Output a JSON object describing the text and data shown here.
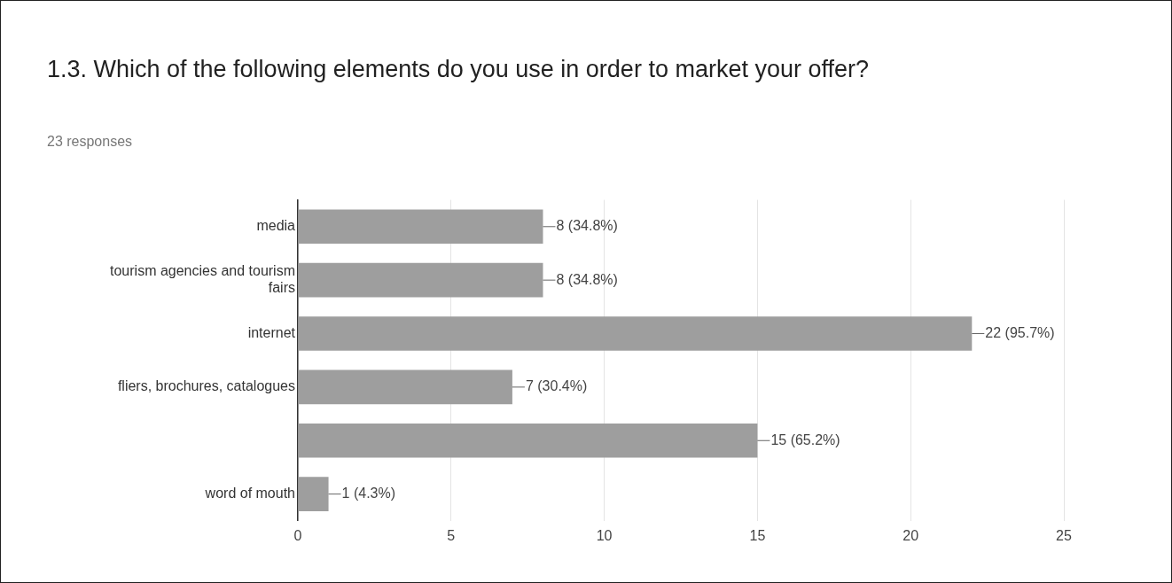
{
  "chart_data": {
    "type": "bar",
    "orientation": "horizontal",
    "title": "1.3. Which of the following elements do you use in order to market your offer?",
    "subtitle": "23 responses",
    "categories": [
      "media",
      "tourism agencies and tourism fairs",
      "internet",
      "fliers, brochures, catalogues",
      null,
      "word of mouth"
    ],
    "values": [
      8,
      8,
      22,
      7,
      15,
      1
    ],
    "value_labels": [
      "8 (34.8%)",
      "8 (34.8%)",
      "22 (95.7%)",
      "7 (30.4%)",
      "15 (65.2%)",
      "1 (4.3%)"
    ],
    "color": "#9e9e9e",
    "xlim": [
      0,
      25
    ],
    "xticks": [
      0,
      5,
      10,
      15,
      20,
      25
    ],
    "grid": "x",
    "legend": false
  }
}
